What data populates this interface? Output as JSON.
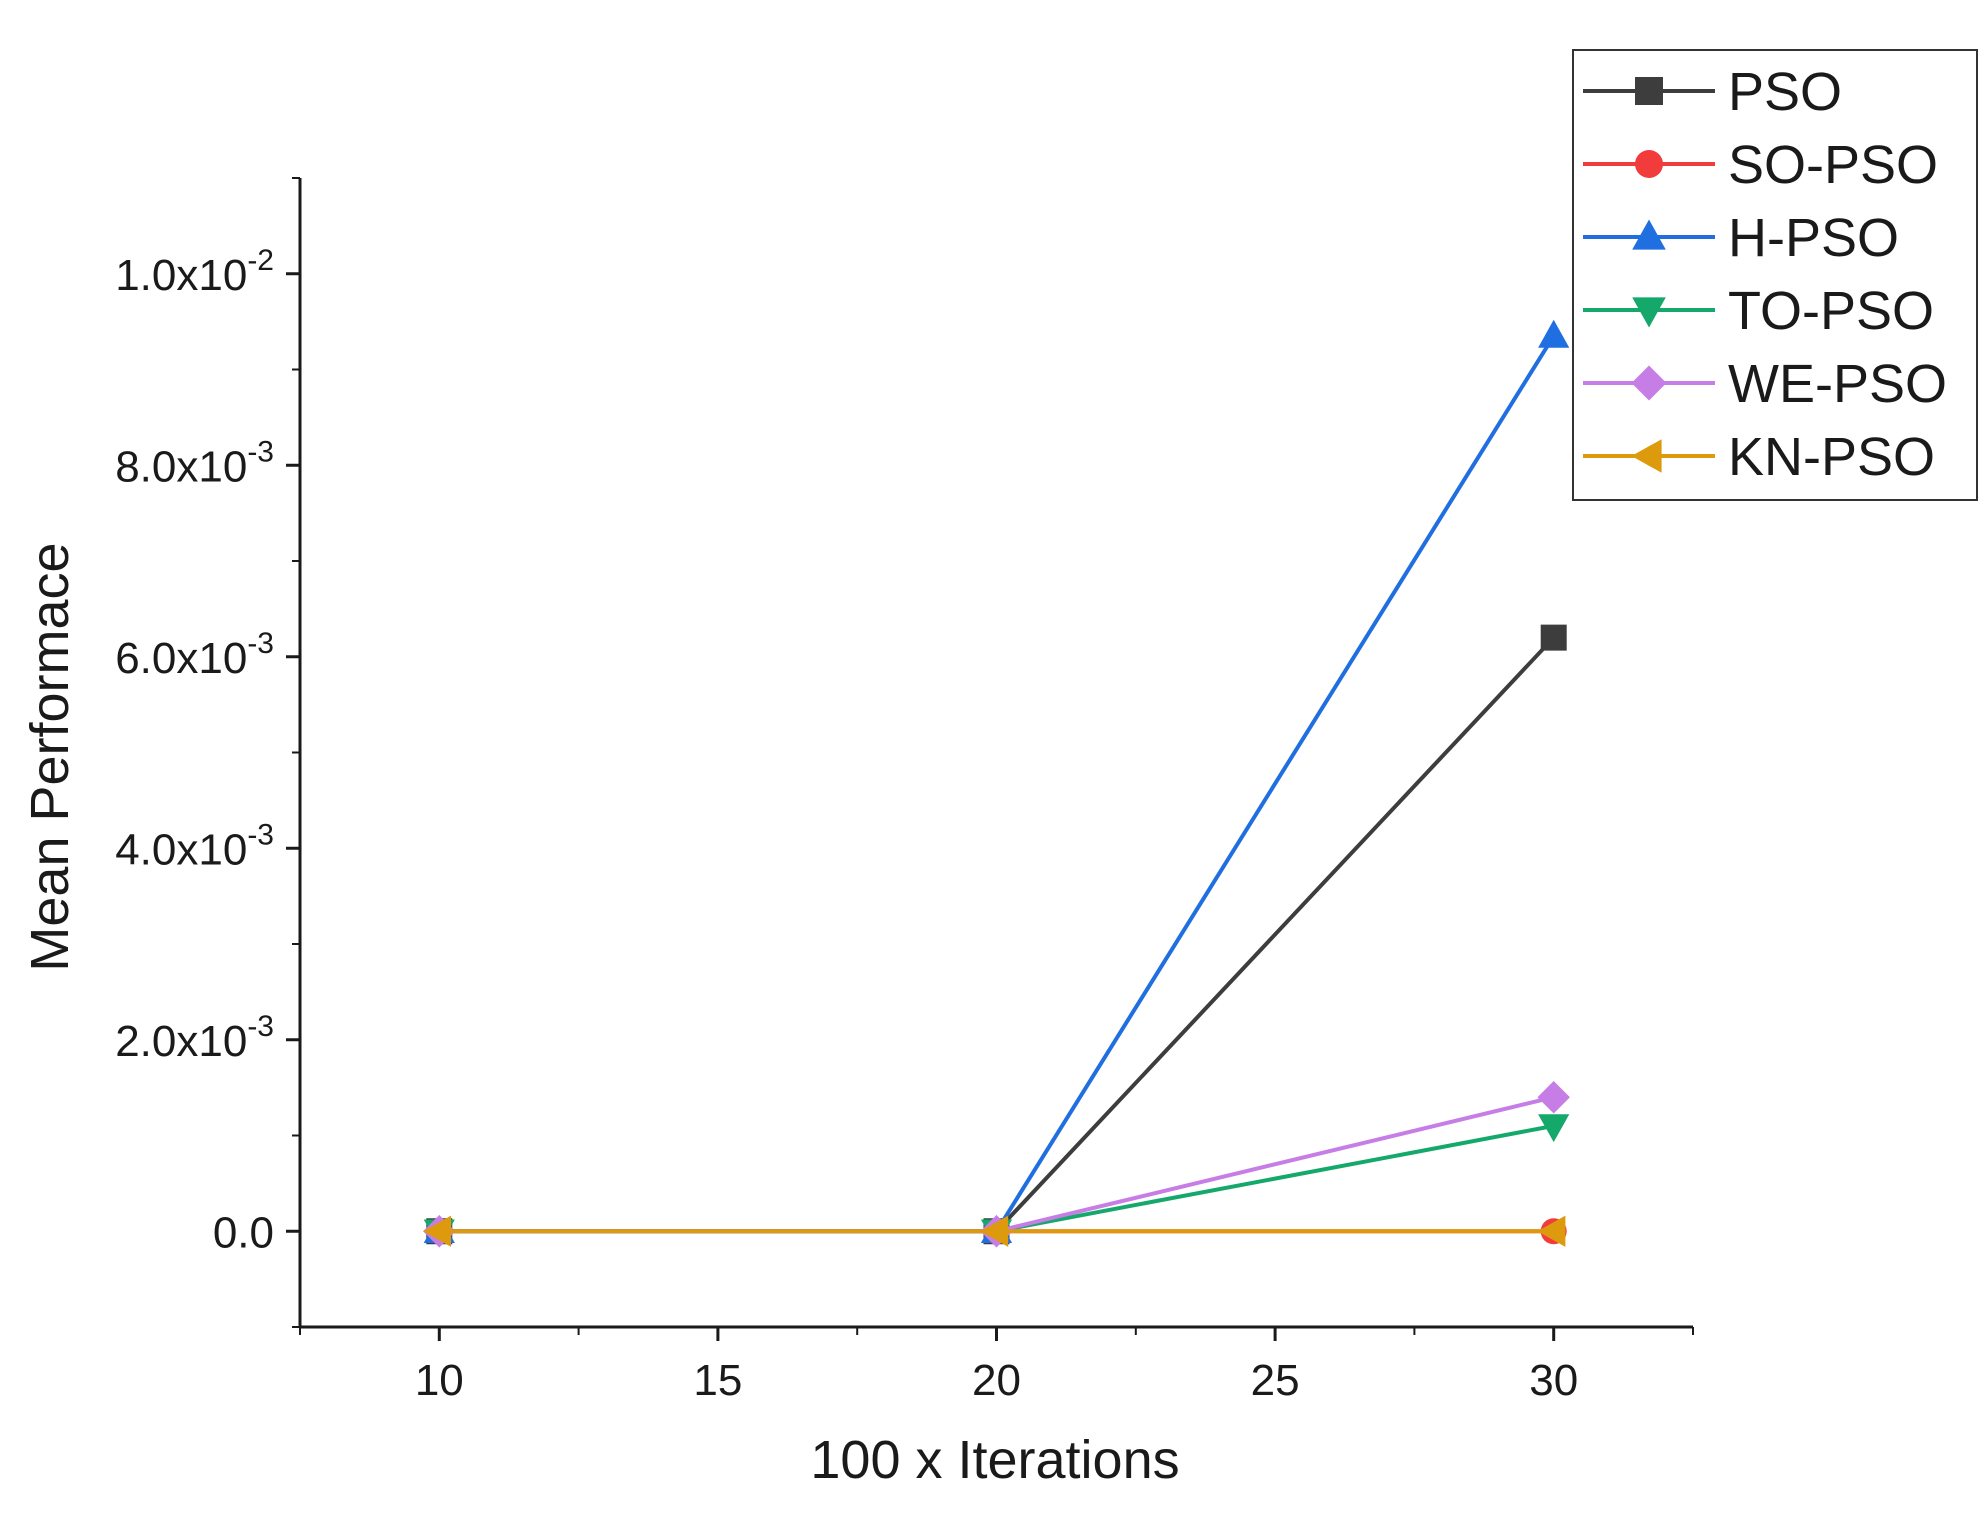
{
  "chart_data": {
    "type": "line",
    "title": "",
    "xlabel": "100 x Iterations",
    "ylabel": "Mean Performace",
    "x": [
      10,
      20,
      30
    ],
    "xlim": [
      7.5,
      32.5
    ],
    "ylim": [
      -0.001,
      0.011
    ],
    "xticks": [
      10,
      15,
      20,
      25,
      30
    ],
    "xtick_labels": [
      "10",
      "15",
      "20",
      "25",
      "30"
    ],
    "yticks": [
      0.0,
      0.002,
      0.004,
      0.006,
      0.008,
      0.01
    ],
    "ytick_labels": [
      {
        "mantissa": "0.0",
        "exponent": ""
      },
      {
        "mantissa": "2.0x10",
        "exponent": "-3"
      },
      {
        "mantissa": "4.0x10",
        "exponent": "-3"
      },
      {
        "mantissa": "6.0x10",
        "exponent": "-3"
      },
      {
        "mantissa": "8.0x10",
        "exponent": "-3"
      },
      {
        "mantissa": "1.0x10",
        "exponent": "-2"
      }
    ],
    "legend_position": "top-right",
    "series": [
      {
        "name": "PSO",
        "color": "#3d3d3d",
        "marker": "square",
        "values": [
          0,
          0,
          0.0062
        ]
      },
      {
        "name": "SO-PSO",
        "color": "#f23b3b",
        "marker": "circle",
        "values": [
          0,
          0,
          0
        ]
      },
      {
        "name": "H-PSO",
        "color": "#1f6fe0",
        "marker": "triangle-up",
        "values": [
          0,
          0,
          0.00935
        ]
      },
      {
        "name": "TO-PSO",
        "color": "#14a86b",
        "marker": "triangle-down",
        "values": [
          0,
          0,
          0.0011
        ]
      },
      {
        "name": "WE-PSO",
        "color": "#c77de6",
        "marker": "diamond",
        "values": [
          0,
          0,
          0.0014
        ]
      },
      {
        "name": "KN-PSO",
        "color": "#dd9a0c",
        "marker": "triangle-left",
        "values": [
          0,
          0,
          0
        ]
      }
    ]
  }
}
